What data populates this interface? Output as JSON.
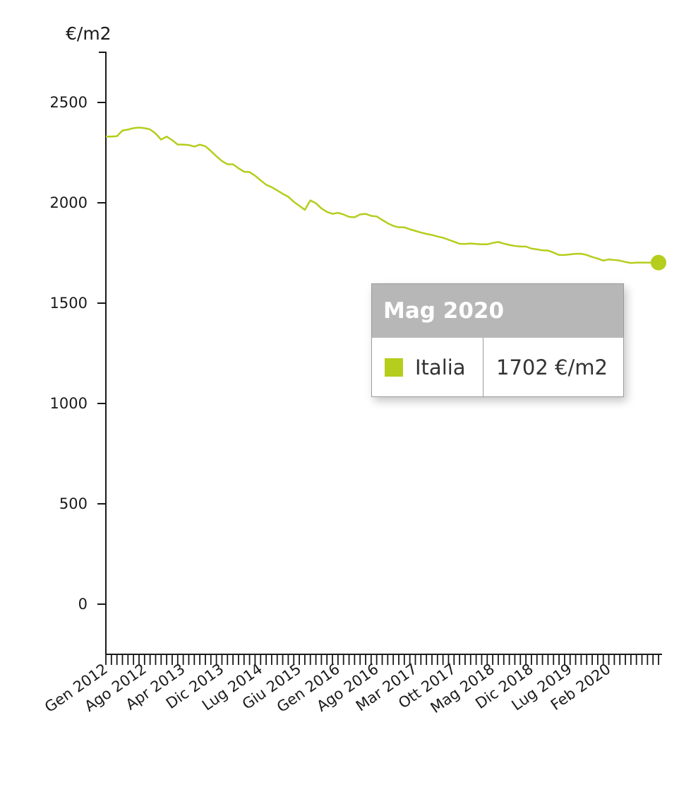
{
  "chart_data": {
    "type": "line",
    "unit_label": "€/m2",
    "ylim": [
      -250,
      2750
    ],
    "yticks": [
      0,
      500,
      1000,
      1500,
      2000,
      2500
    ],
    "xtick_labels": [
      "Gen 2012",
      "Ago 2012",
      "Apr 2013",
      "Dic 2013",
      "Lug 2014",
      "Giu 2015",
      "Gen 2016",
      "Ago 2016",
      "Mar 2017",
      "Ott 2017",
      "Mag 2018",
      "Dic 2018",
      "Lug 2019",
      "Feb 2020"
    ],
    "x_start": "Gen 2012",
    "x_end": "Mag 2020",
    "series": [
      {
        "name": "Italia",
        "color": "#b5cd1c",
        "values": [
          2330,
          2330,
          2332,
          2360,
          2365,
          2372,
          2375,
          2372,
          2366,
          2345,
          2315,
          2330,
          2312,
          2290,
          2290,
          2288,
          2280,
          2290,
          2282,
          2258,
          2232,
          2208,
          2192,
          2192,
          2172,
          2155,
          2153,
          2135,
          2112,
          2090,
          2078,
          2062,
          2045,
          2030,
          2005,
          1985,
          1965,
          2012,
          1998,
          1972,
          1955,
          1945,
          1950,
          1942,
          1930,
          1928,
          1942,
          1945,
          1935,
          1932,
          1915,
          1898,
          1885,
          1878,
          1878,
          1868,
          1860,
          1852,
          1845,
          1840,
          1832,
          1826,
          1816,
          1806,
          1796,
          1795,
          1797,
          1795,
          1793,
          1793,
          1800,
          1805,
          1797,
          1790,
          1785,
          1782,
          1782,
          1772,
          1768,
          1763,
          1762,
          1752,
          1740,
          1740,
          1743,
          1746,
          1746,
          1740,
          1730,
          1722,
          1712,
          1718,
          1715,
          1712,
          1705,
          1700,
          1702,
          1702,
          1702,
          1702,
          1702
        ]
      }
    ]
  },
  "tooltip": {
    "title": "Mag 2020",
    "series_name": "Italia",
    "value_text": "1702 €/m2",
    "swatch_color": "#b5cd1c"
  }
}
